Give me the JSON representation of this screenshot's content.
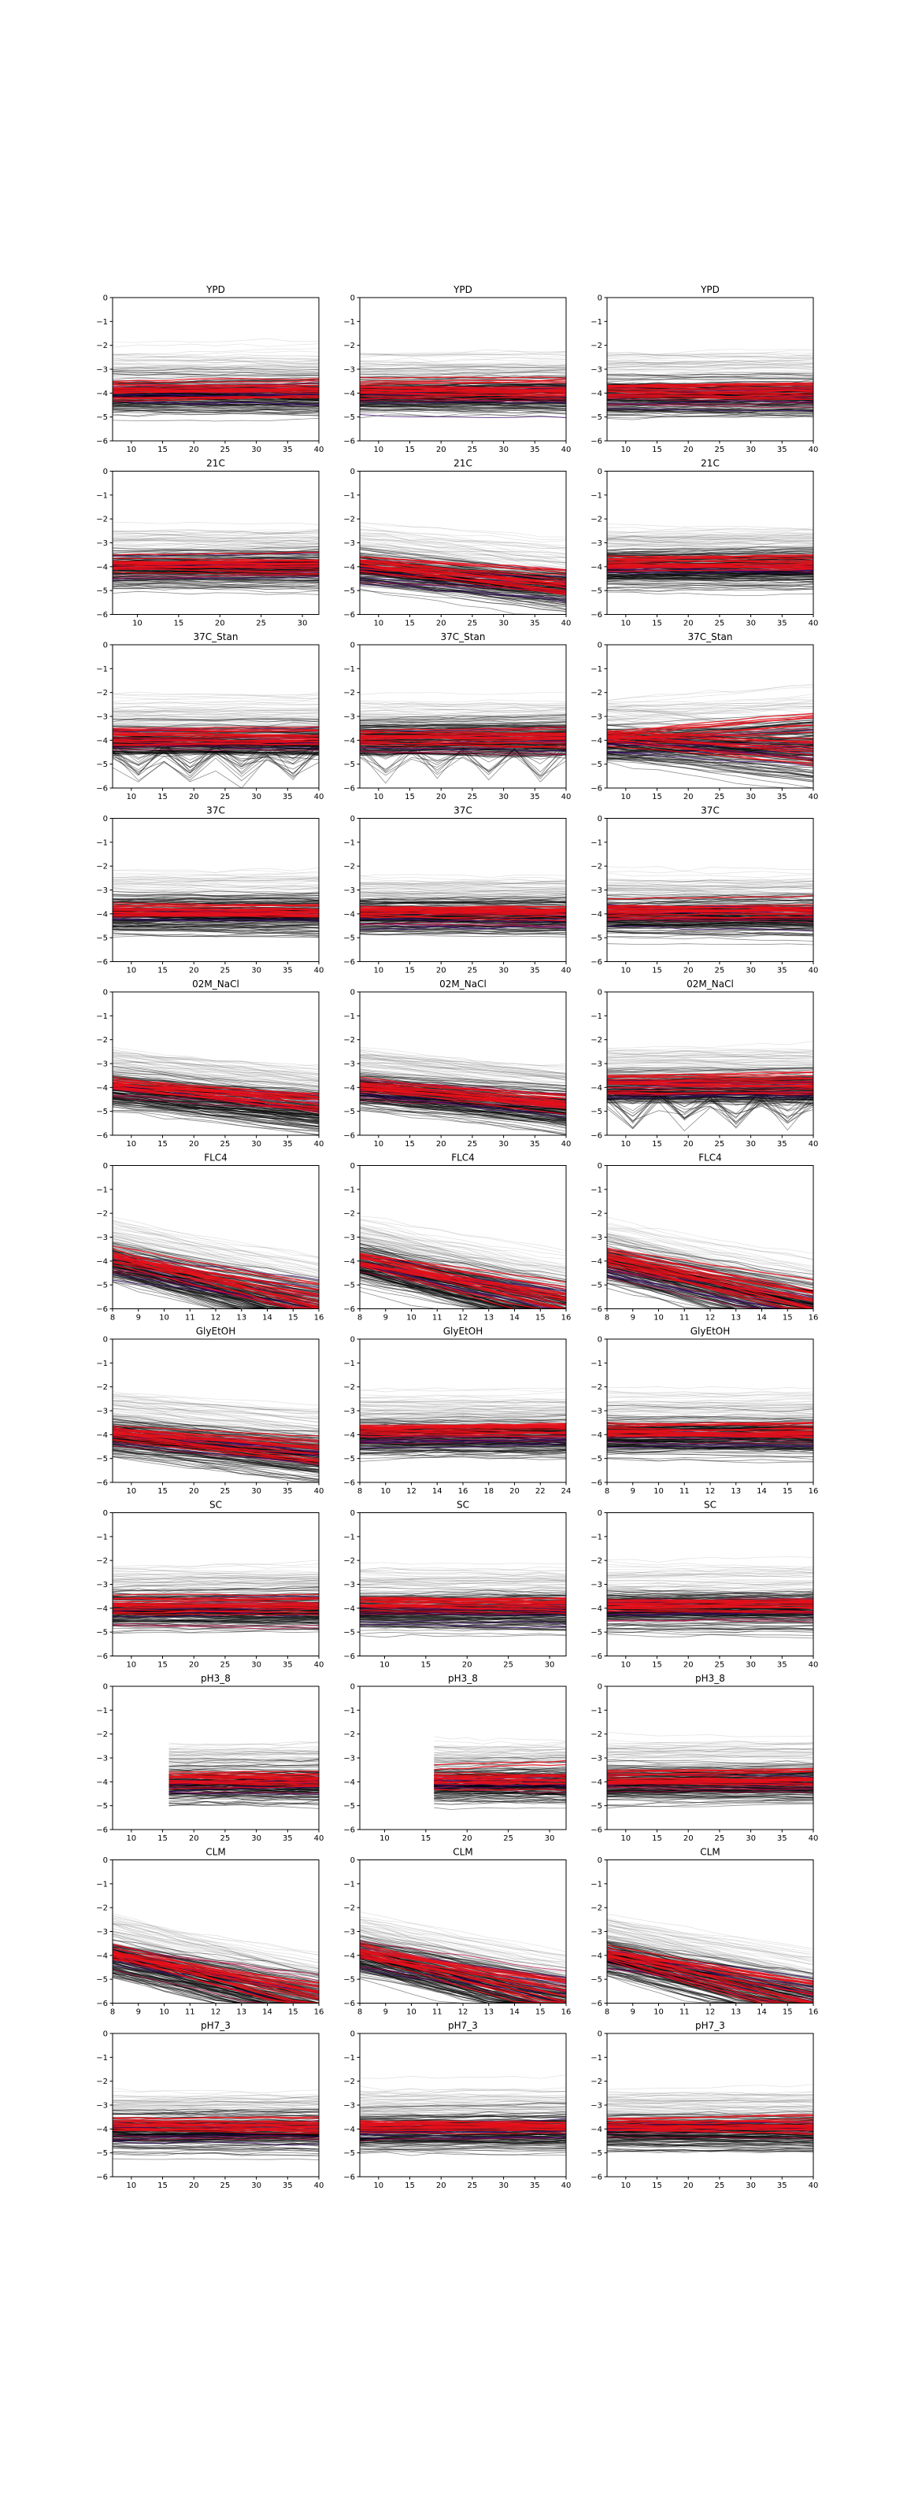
{
  "chart_data": [
    {
      "type": "line",
      "title": "YPD",
      "xticks": [
        10,
        15,
        20,
        25,
        30,
        35,
        40
      ],
      "xlim": [
        7,
        40
      ],
      "yticks": [
        0,
        -1,
        -2,
        -3,
        -4,
        -5,
        -6
      ],
      "ylim": [
        -6,
        0
      ],
      "style": "flat"
    },
    {
      "type": "line",
      "title": "YPD",
      "xticks": [
        10,
        15,
        20,
        25,
        30,
        35,
        40
      ],
      "xlim": [
        7,
        40
      ],
      "yticks": [
        0,
        -1,
        -2,
        -3,
        -4,
        -5,
        -6
      ],
      "ylim": [
        -6,
        0
      ],
      "style": "flat"
    },
    {
      "type": "line",
      "title": "YPD",
      "xticks": [
        10,
        15,
        20,
        25,
        30,
        35,
        40
      ],
      "xlim": [
        7,
        40
      ],
      "yticks": [
        0,
        -1,
        -2,
        -3,
        -4,
        -5,
        -6
      ],
      "ylim": [
        -6,
        0
      ],
      "style": "flat"
    },
    {
      "type": "line",
      "title": "21C",
      "xticks": [
        10,
        15,
        20,
        25,
        30
      ],
      "xlim": [
        7,
        32
      ],
      "yticks": [
        0,
        -1,
        -2,
        -3,
        -4,
        -5,
        -6
      ],
      "ylim": [
        -6,
        0
      ],
      "style": "flat"
    },
    {
      "type": "line",
      "title": "21C",
      "xticks": [
        10,
        15,
        20,
        25,
        30,
        35,
        40
      ],
      "xlim": [
        7,
        40
      ],
      "yticks": [
        0,
        -1,
        -2,
        -3,
        -4,
        -5,
        -6
      ],
      "ylim": [
        -6,
        0
      ],
      "style": "drift"
    },
    {
      "type": "line",
      "title": "21C",
      "xticks": [
        10,
        15,
        20,
        25,
        30,
        35,
        40
      ],
      "xlim": [
        7,
        40
      ],
      "yticks": [
        0,
        -1,
        -2,
        -3,
        -4,
        -5,
        -6
      ],
      "ylim": [
        -6,
        0
      ],
      "style": "flat"
    },
    {
      "type": "line",
      "title": "37C_Stan",
      "xticks": [
        10,
        15,
        20,
        25,
        30,
        35,
        40
      ],
      "xlim": [
        7,
        40
      ],
      "yticks": [
        0,
        -1,
        -2,
        -3,
        -4,
        -5,
        -6
      ],
      "ylim": [
        -6,
        0
      ],
      "style": "zigzag"
    },
    {
      "type": "line",
      "title": "37C_Stan",
      "xticks": [
        10,
        15,
        20,
        25,
        30,
        35,
        40
      ],
      "xlim": [
        7,
        40
      ],
      "yticks": [
        0,
        -1,
        -2,
        -3,
        -4,
        -5,
        -6
      ],
      "ylim": [
        -6,
        0
      ],
      "style": "zigzag"
    },
    {
      "type": "line",
      "title": "37C_Stan",
      "xticks": [
        10,
        15,
        20,
        25,
        30,
        35,
        40
      ],
      "xlim": [
        7,
        40
      ],
      "yticks": [
        0,
        -1,
        -2,
        -3,
        -4,
        -5,
        -6
      ],
      "ylim": [
        -6,
        0
      ],
      "style": "fan"
    },
    {
      "type": "line",
      "title": "37C",
      "xticks": [
        10,
        15,
        20,
        25,
        30,
        35,
        40
      ],
      "xlim": [
        7,
        40
      ],
      "yticks": [
        0,
        -1,
        -2,
        -3,
        -4,
        -5,
        -6
      ],
      "ylim": [
        -6,
        0
      ],
      "style": "flat"
    },
    {
      "type": "line",
      "title": "37C",
      "xticks": [
        10,
        15,
        20,
        25,
        30,
        35,
        40
      ],
      "xlim": [
        7,
        40
      ],
      "yticks": [
        0,
        -1,
        -2,
        -3,
        -4,
        -5,
        -6
      ],
      "ylim": [
        -6,
        0
      ],
      "style": "flat"
    },
    {
      "type": "line",
      "title": "37C",
      "xticks": [
        10,
        15,
        20,
        25,
        30,
        35,
        40
      ],
      "xlim": [
        7,
        40
      ],
      "yticks": [
        0,
        -1,
        -2,
        -3,
        -4,
        -5,
        -6
      ],
      "ylim": [
        -6,
        0
      ],
      "style": "flat"
    },
    {
      "type": "line",
      "title": "02M_NaCl",
      "xticks": [
        10,
        15,
        20,
        25,
        30,
        35,
        40
      ],
      "xlim": [
        7,
        40
      ],
      "yticks": [
        0,
        -1,
        -2,
        -3,
        -4,
        -5,
        -6
      ],
      "ylim": [
        -6,
        0
      ],
      "style": "drift"
    },
    {
      "type": "line",
      "title": "02M_NaCl",
      "xticks": [
        10,
        15,
        20,
        25,
        30,
        35,
        40
      ],
      "xlim": [
        7,
        40
      ],
      "yticks": [
        0,
        -1,
        -2,
        -3,
        -4,
        -5,
        -6
      ],
      "ylim": [
        -6,
        0
      ],
      "style": "drift"
    },
    {
      "type": "line",
      "title": "02M_NaCl",
      "xticks": [
        10,
        15,
        20,
        25,
        30,
        35,
        40
      ],
      "xlim": [
        7,
        40
      ],
      "yticks": [
        0,
        -1,
        -2,
        -3,
        -4,
        -5,
        -6
      ],
      "ylim": [
        -6,
        0
      ],
      "style": "zigzag"
    },
    {
      "type": "line",
      "title": "FLC4",
      "xticks": [
        8,
        9,
        10,
        11,
        12,
        13,
        14,
        15,
        16
      ],
      "xlim": [
        8,
        16
      ],
      "yticks": [
        0,
        -1,
        -2,
        -3,
        -4,
        -5,
        -6
      ],
      "ylim": [
        -6,
        0
      ],
      "style": "decline"
    },
    {
      "type": "line",
      "title": "FLC4",
      "xticks": [
        8,
        9,
        10,
        11,
        12,
        13,
        14,
        15,
        16
      ],
      "xlim": [
        8,
        16
      ],
      "yticks": [
        0,
        -1,
        -2,
        -3,
        -4,
        -5,
        -6
      ],
      "ylim": [
        -6,
        0
      ],
      "style": "decline"
    },
    {
      "type": "line",
      "title": "FLC4",
      "xticks": [
        8,
        9,
        10,
        11,
        12,
        13,
        14,
        15,
        16
      ],
      "xlim": [
        8,
        16
      ],
      "yticks": [
        0,
        -1,
        -2,
        -3,
        -4,
        -5,
        -6
      ],
      "ylim": [
        -6,
        0
      ],
      "style": "decline"
    },
    {
      "type": "line",
      "title": "GlyEtOH",
      "xticks": [
        10,
        15,
        20,
        25,
        30,
        35,
        40
      ],
      "xlim": [
        7,
        40
      ],
      "yticks": [
        0,
        -1,
        -2,
        -3,
        -4,
        -5,
        -6
      ],
      "ylim": [
        -6,
        0
      ],
      "style": "drift"
    },
    {
      "type": "line",
      "title": "GlyEtOH",
      "xticks": [
        8,
        10,
        12,
        14,
        16,
        18,
        20,
        22,
        24
      ],
      "xlim": [
        8,
        24
      ],
      "yticks": [
        0,
        -1,
        -2,
        -3,
        -4,
        -5,
        -6
      ],
      "ylim": [
        -6,
        0
      ],
      "style": "flat"
    },
    {
      "type": "line",
      "title": "GlyEtOH",
      "xticks": [
        8,
        9,
        10,
        11,
        12,
        13,
        14,
        15,
        16
      ],
      "xlim": [
        8,
        16
      ],
      "yticks": [
        0,
        -1,
        -2,
        -3,
        -4,
        -5,
        -6
      ],
      "ylim": [
        -6,
        0
      ],
      "style": "flat"
    },
    {
      "type": "line",
      "title": "SC",
      "xticks": [
        10,
        15,
        20,
        25,
        30,
        35,
        40
      ],
      "xlim": [
        7,
        40
      ],
      "yticks": [
        0,
        -1,
        -2,
        -3,
        -4,
        -5,
        -6
      ],
      "ylim": [
        -6,
        0
      ],
      "style": "flat"
    },
    {
      "type": "line",
      "title": "SC",
      "xticks": [
        10,
        15,
        20,
        25,
        30
      ],
      "xlim": [
        7,
        32
      ],
      "yticks": [
        0,
        -1,
        -2,
        -3,
        -4,
        -5,
        -6
      ],
      "ylim": [
        -6,
        0
      ],
      "style": "flat"
    },
    {
      "type": "line",
      "title": "SC",
      "xticks": [
        10,
        15,
        20,
        25,
        30,
        35,
        40
      ],
      "xlim": [
        7,
        40
      ],
      "yticks": [
        0,
        -1,
        -2,
        -3,
        -4,
        -5,
        -6
      ],
      "ylim": [
        -6,
        0
      ],
      "style": "flat"
    },
    {
      "type": "line",
      "title": "pH3_8",
      "xticks": [
        10,
        15,
        20,
        25,
        30,
        35,
        40
      ],
      "xlim": [
        7,
        40
      ],
      "yticks": [
        0,
        -1,
        -2,
        -3,
        -4,
        -5,
        -6
      ],
      "ylim": [
        -6,
        0
      ],
      "style": "flat",
      "xstart": 16
    },
    {
      "type": "line",
      "title": "pH3_8",
      "xticks": [
        10,
        15,
        20,
        25,
        30
      ],
      "xlim": [
        7,
        32
      ],
      "yticks": [
        0,
        -1,
        -2,
        -3,
        -4,
        -5,
        -6
      ],
      "ylim": [
        -6,
        0
      ],
      "style": "flat",
      "xstart": 16
    },
    {
      "type": "line",
      "title": "pH3_8",
      "xticks": [
        10,
        15,
        20,
        25,
        30,
        35,
        40
      ],
      "xlim": [
        7,
        40
      ],
      "yticks": [
        0,
        -1,
        -2,
        -3,
        -4,
        -5,
        -6
      ],
      "ylim": [
        -6,
        0
      ],
      "style": "flat"
    },
    {
      "type": "line",
      "title": "CLM",
      "xticks": [
        8,
        9,
        10,
        11,
        12,
        13,
        14,
        15,
        16
      ],
      "xlim": [
        8,
        16
      ],
      "yticks": [
        0,
        -1,
        -2,
        -3,
        -4,
        -5,
        -6
      ],
      "ylim": [
        -6,
        0
      ],
      "style": "decline"
    },
    {
      "type": "line",
      "title": "CLM",
      "xticks": [
        8,
        9,
        10,
        11,
        12,
        13,
        14,
        15,
        16
      ],
      "xlim": [
        8,
        16
      ],
      "yticks": [
        0,
        -1,
        -2,
        -3,
        -4,
        -5,
        -6
      ],
      "ylim": [
        -6,
        0
      ],
      "style": "decline"
    },
    {
      "type": "line",
      "title": "CLM",
      "xticks": [
        8,
        9,
        10,
        11,
        12,
        13,
        14,
        15,
        16
      ],
      "xlim": [
        8,
        16
      ],
      "yticks": [
        0,
        -1,
        -2,
        -3,
        -4,
        -5,
        -6
      ],
      "ylim": [
        -6,
        0
      ],
      "style": "decline"
    },
    {
      "type": "line",
      "title": "pH7_3",
      "xticks": [
        10,
        15,
        20,
        25,
        30,
        35,
        40
      ],
      "xlim": [
        7,
        40
      ],
      "yticks": [
        0,
        -1,
        -2,
        -3,
        -4,
        -5,
        -6
      ],
      "ylim": [
        -6,
        0
      ],
      "style": "flat"
    },
    {
      "type": "line",
      "title": "pH7_3",
      "xticks": [
        10,
        15,
        20,
        25,
        30,
        35,
        40
      ],
      "xlim": [
        7,
        40
      ],
      "yticks": [
        0,
        -1,
        -2,
        -3,
        -4,
        -5,
        -6
      ],
      "ylim": [
        -6,
        0
      ],
      "style": "flat"
    },
    {
      "type": "line",
      "title": "pH7_3",
      "xticks": [
        10,
        15,
        20,
        25,
        30,
        35,
        40
      ],
      "xlim": [
        7,
        40
      ],
      "yticks": [
        0,
        -1,
        -2,
        -3,
        -4,
        -5,
        -6
      ],
      "ylim": [
        -6,
        0
      ],
      "style": "flat"
    }
  ],
  "colors": {
    "background_lines": "#000000",
    "highlight_red": "#e8101a",
    "highlight_purple": "#3a0a6e",
    "highlight_magenta": "#b0104a",
    "axis": "#000000"
  }
}
